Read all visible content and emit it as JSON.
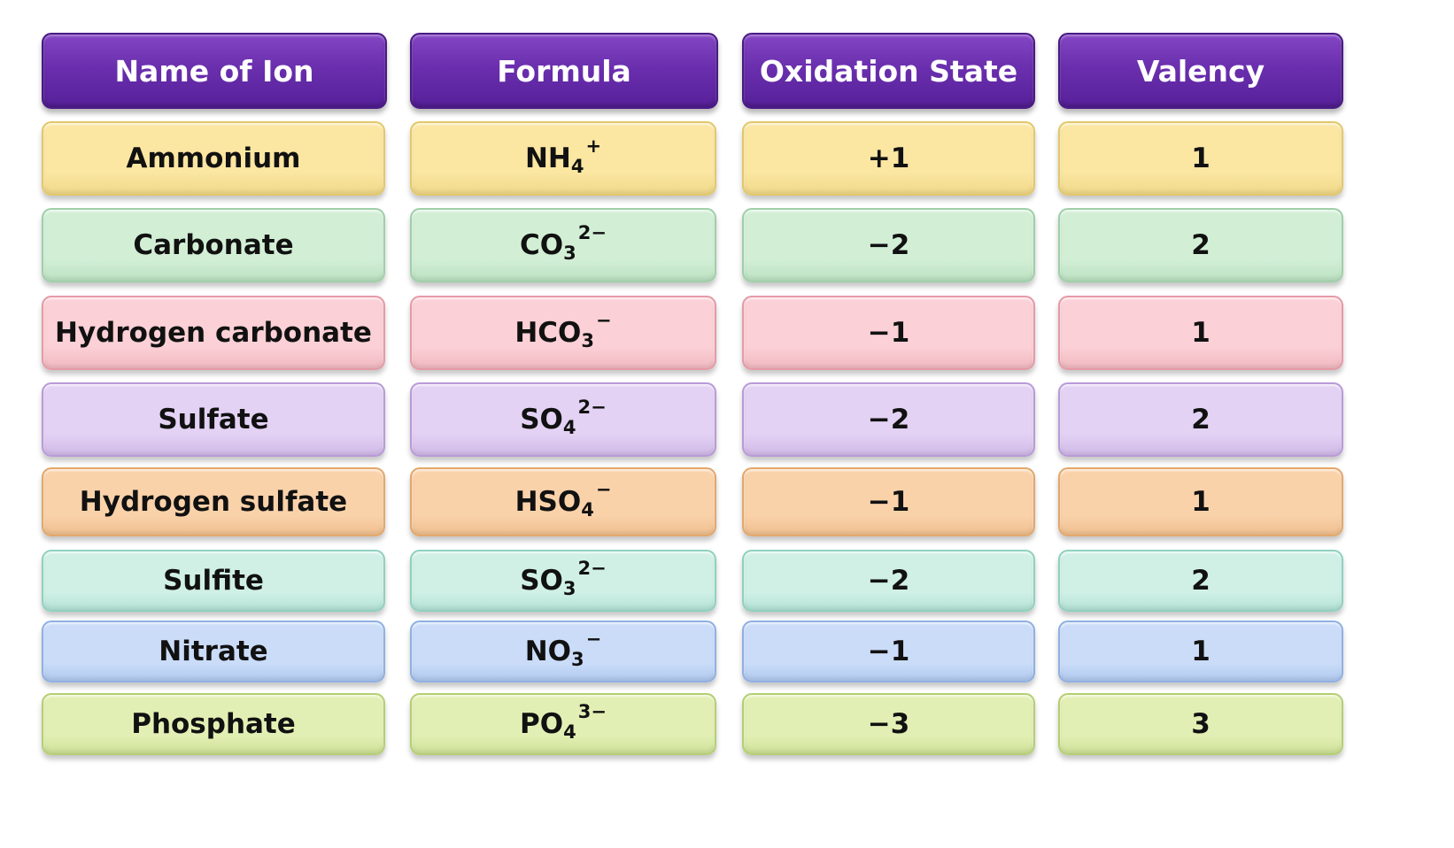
{
  "headers": {
    "name": "Name of Ion",
    "formula": "Formula",
    "oxidation": "Oxidation State",
    "valency": "Valency"
  },
  "rows": [
    {
      "name": "Ammonium",
      "formula_base": "NH",
      "formula_sub": "4",
      "formula_charge": "+",
      "oxidation": "+1",
      "valency": "1",
      "color": "#fbe6a2",
      "border": "#e2c86a"
    },
    {
      "name": "Carbonate",
      "formula_base": "CO",
      "formula_sub": "3",
      "formula_charge": "2−",
      "oxidation": "−2",
      "valency": "2",
      "color": "#d2efd6",
      "border": "#9fcfa8"
    },
    {
      "name": "Hydrogen carbonate",
      "formula_base": "HCO",
      "formula_sub": "3",
      "formula_charge": "−",
      "oxidation": "−1",
      "valency": "1",
      "color": "#fbd0d6",
      "border": "#e59aa6"
    },
    {
      "name": "Sulfate",
      "formula_base": "SO",
      "formula_sub": "4",
      "formula_charge": "2−",
      "oxidation": "−2",
      "valency": "2",
      "color": "#e3d2f4",
      "border": "#b99ad8"
    },
    {
      "name": "Hydrogen sulfate",
      "formula_base": "HSO",
      "formula_sub": "4",
      "formula_charge": "−",
      "oxidation": "−1",
      "valency": "1",
      "color": "#fad2aa",
      "border": "#e2a76c"
    },
    {
      "name": "Sulfite",
      "formula_base": "SO",
      "formula_sub": "3",
      "formula_charge": "2−",
      "oxidation": "−2",
      "valency": "2",
      "color": "#d0f0e6",
      "border": "#8fd1bf"
    },
    {
      "name": "Nitrate",
      "formula_base": "NO",
      "formula_sub": "3",
      "formula_charge": "−",
      "oxidation": "−1",
      "valency": "1",
      "color": "#cadcf8",
      "border": "#8fb0e3"
    },
    {
      "name": "Phosphate",
      "formula_base": "PO",
      "formula_sub": "4",
      "formula_charge": "3−",
      "oxidation": "−3",
      "valency": "3",
      "color": "#e2efb4",
      "border": "#b4cf72"
    }
  ]
}
